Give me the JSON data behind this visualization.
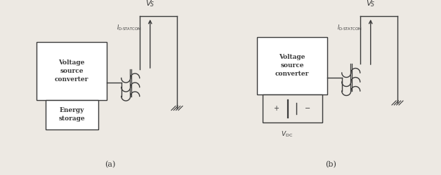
{
  "fig_width": 6.28,
  "fig_height": 2.5,
  "dpi": 100,
  "bg_color": "#ede9e3",
  "line_color": "#3a3a3a",
  "box_color": "#ffffff",
  "label_a": "(a)",
  "label_b": "(b)",
  "vsc_label": "Voltage\nsource\nconverter",
  "energy_label": "Energy\nstorage"
}
